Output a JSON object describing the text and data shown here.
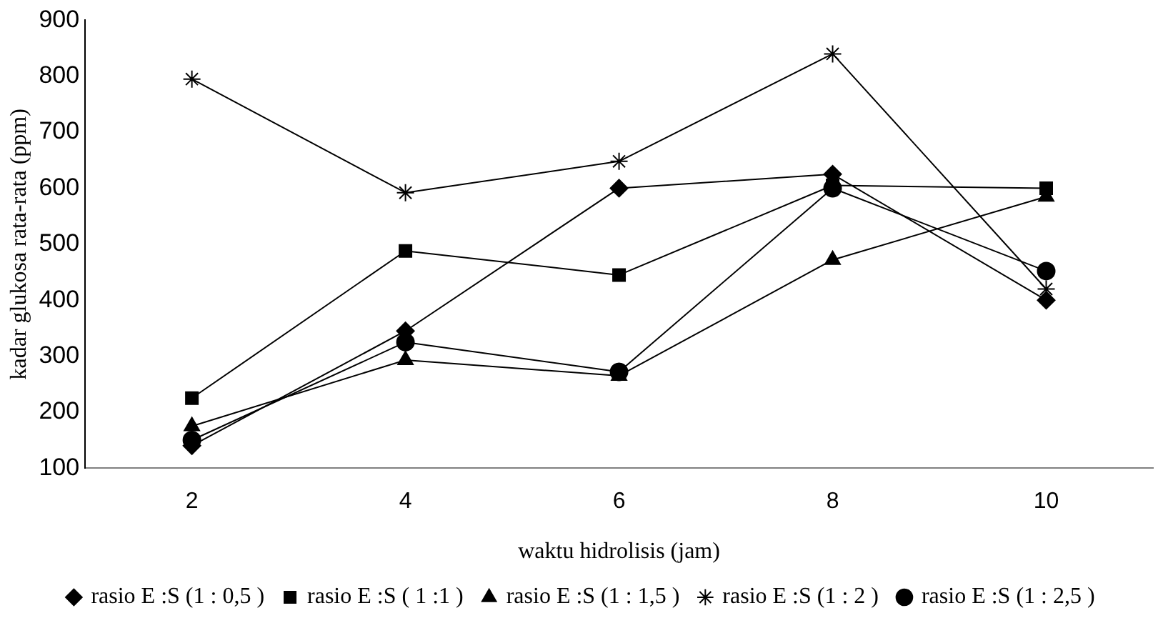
{
  "chart_data": {
    "type": "line",
    "xlabel": "waktu hidrolisis (jam)",
    "ylabel": "kadar glukosa rata-rata (ppm)",
    "categories": [
      "2",
      "4",
      "6",
      "8",
      "10"
    ],
    "ylim": [
      100,
      900
    ],
    "yticks": [
      100,
      200,
      300,
      400,
      500,
      600,
      700,
      800,
      900
    ],
    "grid": false,
    "legend": "bottom",
    "line_style": "solid",
    "series": [
      {
        "name": "rasio E :S (1 : 0,5 )",
        "color": "#000000",
        "marker": "diamond",
        "values": [
          140,
          345,
          600,
          625,
          400
        ]
      },
      {
        "name": "rasio E :S ( 1 :1 )",
        "color": "#000000",
        "marker": "square",
        "values": [
          225,
          488,
          445,
          605,
          600
        ]
      },
      {
        "name": "rasio E :S (1 : 1,5 )",
        "color": "#000000",
        "marker": "triangle",
        "values": [
          175,
          293,
          265,
          472,
          585
        ]
      },
      {
        "name": "rasio E :S (1 : 2 )",
        "color": "#000000",
        "marker": "cross",
        "values": [
          795,
          592,
          648,
          840,
          420
        ]
      },
      {
        "name": "rasio E :S (1 : 2,5 )",
        "color": "#000000",
        "marker": "circle",
        "values": [
          150,
          325,
          272,
          600,
          452
        ]
      }
    ]
  }
}
